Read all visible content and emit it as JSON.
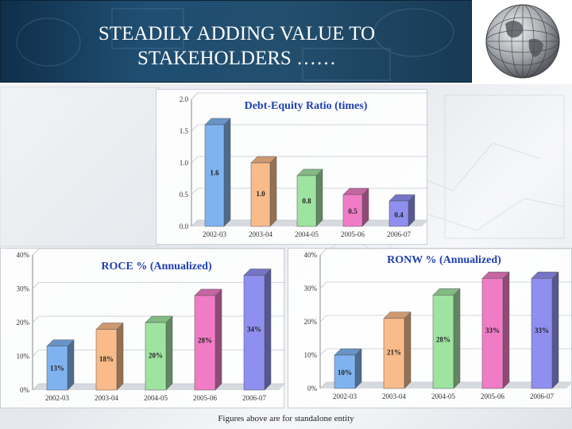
{
  "header": {
    "title_line1": "STEADILY ADDING VALUE TO",
    "title_line2": "STAKEHOLDERS ……"
  },
  "footnote": "Figures above are for standalone entity",
  "colors": {
    "title_bg": "#1f4e72",
    "title_text": "#ffffff",
    "chart_title": "#1f3fb0",
    "bars": [
      "#7fb3f0",
      "#f9bb8a",
      "#9fe3a0",
      "#f07cc6",
      "#8f8ff0"
    ]
  },
  "chart_data": [
    {
      "id": "debt-equity",
      "type": "bar",
      "title": "Debt-Equity Ratio (times)",
      "categories": [
        "2002-03",
        "2003-04",
        "2004-05",
        "2005-06",
        "2006-07"
      ],
      "values": [
        1.6,
        1.0,
        0.8,
        0.5,
        0.4
      ],
      "data_labels": [
        "1.6",
        "1.0",
        "0.8",
        "0.5",
        "0.4"
      ],
      "yticks": [
        "0.0",
        "0.5",
        "1.0",
        "1.5",
        "2.0"
      ],
      "ylim": [
        0,
        2.0
      ],
      "grid": true,
      "xlabel": "",
      "ylabel": ""
    },
    {
      "id": "roce",
      "type": "bar",
      "title": "ROCE % (Annualized)",
      "categories": [
        "2002-03",
        "2003-04",
        "2004-05",
        "2005-06",
        "2006-07"
      ],
      "values": [
        13,
        18,
        20,
        28,
        34
      ],
      "data_labels": [
        "13%",
        "18%",
        "20%",
        "28%",
        "34%"
      ],
      "yticks": [
        "0%",
        "10%",
        "20%",
        "30%",
        "40%"
      ],
      "ylim": [
        0,
        40
      ],
      "grid": true,
      "xlabel": "",
      "ylabel": ""
    },
    {
      "id": "ronw",
      "type": "bar",
      "title": "RONW % (Annualized)",
      "categories": [
        "2002-03",
        "2003-04",
        "2004-05",
        "2005-06",
        "2006-07"
      ],
      "values": [
        10,
        21,
        28,
        33,
        33
      ],
      "data_labels": [
        "10%",
        "21%",
        "28%",
        "33%",
        "33%"
      ],
      "yticks": [
        "0%",
        "10%",
        "20%",
        "30%",
        "40%"
      ],
      "ylim": [
        0,
        40
      ],
      "grid": true,
      "xlabel": "",
      "ylabel": ""
    }
  ]
}
